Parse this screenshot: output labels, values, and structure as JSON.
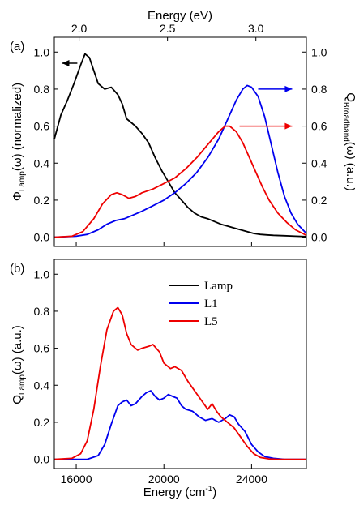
{
  "chart_data": [
    {
      "id": "a",
      "type": "line",
      "panel_label": "(a)",
      "top_axis": {
        "title": "Energy (eV)",
        "ticks": [
          2.0,
          2.5,
          3.0
        ],
        "tick_labels": [
          "2.0",
          "2.5",
          "3.0"
        ]
      },
      "x_range_cm": [
        15000,
        26500
      ],
      "ylim": [
        -0.05,
        1.08
      ],
      "left_axis": {
        "label_main": "Φ",
        "label_sub": "Lamp",
        "label_rest": "(ω) (normalized)",
        "ticks": [
          0.0,
          0.2,
          0.4,
          0.6,
          0.8,
          1.0
        ],
        "tick_labels": [
          "0.0",
          "0.2",
          "0.4",
          "0.6",
          "0.8",
          "1.0"
        ]
      },
      "right_axis": {
        "label_main": "Q",
        "label_sub": "Broadband",
        "label_rest": "(ω) (a.u.)",
        "ticks": [
          0.0,
          0.2,
          0.4,
          0.6,
          0.8,
          1.0
        ],
        "tick_labels": [
          "0.0",
          "0.2",
          "0.4",
          "0.6",
          "0.8",
          "1.0"
        ]
      },
      "series": [
        {
          "color": "#000000",
          "axis": "left",
          "x": [
            15000,
            15300,
            15600,
            15900,
            16200,
            16400,
            16600,
            16800,
            17000,
            17300,
            17600,
            17900,
            18100,
            18300,
            18500,
            18700,
            19000,
            19300,
            19600,
            19900,
            20200,
            20500,
            20800,
            21100,
            21400,
            21700,
            22000,
            22300,
            22600,
            22900,
            23200,
            23500,
            23800,
            24100,
            24400,
            24700,
            25000,
            25500,
            26000,
            26500
          ],
          "y": [
            0.53,
            0.66,
            0.74,
            0.83,
            0.93,
            0.99,
            0.97,
            0.9,
            0.83,
            0.8,
            0.81,
            0.77,
            0.72,
            0.64,
            0.62,
            0.6,
            0.56,
            0.51,
            0.43,
            0.36,
            0.3,
            0.24,
            0.2,
            0.16,
            0.13,
            0.11,
            0.1,
            0.085,
            0.07,
            0.06,
            0.05,
            0.04,
            0.03,
            0.02,
            0.015,
            0.012,
            0.01,
            0.008,
            0.005,
            0.003
          ]
        },
        {
          "color": "#0000ee",
          "axis": "right",
          "x": [
            15000,
            16000,
            16500,
            17000,
            17400,
            17800,
            18200,
            18600,
            19000,
            19500,
            20000,
            20500,
            21000,
            21500,
            22000,
            22500,
            23000,
            23300,
            23600,
            23800,
            24000,
            24300,
            24600,
            24900,
            25200,
            25500,
            25800,
            26100,
            26500
          ],
          "y": [
            0.0,
            0.005,
            0.015,
            0.04,
            0.07,
            0.09,
            0.1,
            0.12,
            0.14,
            0.17,
            0.2,
            0.24,
            0.29,
            0.35,
            0.43,
            0.53,
            0.66,
            0.74,
            0.8,
            0.82,
            0.81,
            0.76,
            0.65,
            0.5,
            0.35,
            0.22,
            0.13,
            0.07,
            0.02
          ]
        },
        {
          "color": "#ee0000",
          "axis": "right",
          "x": [
            15000,
            15800,
            16300,
            16800,
            17200,
            17600,
            17850,
            18100,
            18400,
            18700,
            19000,
            19500,
            20000,
            20500,
            21000,
            21500,
            22000,
            22500,
            22800,
            23000,
            23300,
            23600,
            23900,
            24200,
            24500,
            24800,
            25200,
            25600,
            26000,
            26500
          ],
          "y": [
            0.0,
            0.005,
            0.03,
            0.1,
            0.18,
            0.23,
            0.24,
            0.23,
            0.21,
            0.22,
            0.24,
            0.26,
            0.29,
            0.32,
            0.37,
            0.43,
            0.5,
            0.57,
            0.6,
            0.6,
            0.57,
            0.51,
            0.43,
            0.35,
            0.27,
            0.2,
            0.13,
            0.08,
            0.04,
            0.01
          ]
        }
      ]
    },
    {
      "id": "b",
      "type": "line",
      "panel_label": "(b)",
      "xlabel_main": "Energy (cm",
      "xlabel_sup": "-1",
      "xlabel_end": ")",
      "xlim": [
        15000,
        26500
      ],
      "ylim": [
        -0.05,
        1.08
      ],
      "x_ticks": [
        16000,
        20000,
        24000
      ],
      "x_tick_labels": [
        "16000",
        "20000",
        "24000"
      ],
      "left_axis": {
        "label_main": "Q",
        "label_sub": "Lamp",
        "label_rest": "(ω) (a.u.)",
        "ticks": [
          0.0,
          0.2,
          0.4,
          0.6,
          0.8,
          1.0
        ],
        "tick_labels": [
          "0.0",
          "0.2",
          "0.4",
          "0.6",
          "0.8",
          "1.0"
        ]
      },
      "legend": [
        {
          "label": "Lamp",
          "color": "#000000"
        },
        {
          "label": "L1",
          "color": "#0000ee"
        },
        {
          "label": "L5",
          "color": "#ee0000"
        }
      ],
      "series": [
        {
          "name": "L1",
          "color": "#0000ee",
          "x": [
            15000,
            16500,
            17000,
            17300,
            17600,
            17900,
            18100,
            18300,
            18500,
            18700,
            19000,
            19200,
            19400,
            19600,
            19800,
            20000,
            20200,
            20400,
            20600,
            20800,
            21000,
            21300,
            21600,
            21900,
            22200,
            22500,
            22800,
            23000,
            23200,
            23400,
            23700,
            24000,
            24300,
            24600,
            25000,
            25500,
            26500
          ],
          "y": [
            0.0,
            0.0,
            0.02,
            0.08,
            0.19,
            0.29,
            0.31,
            0.32,
            0.29,
            0.3,
            0.34,
            0.36,
            0.37,
            0.34,
            0.32,
            0.33,
            0.35,
            0.34,
            0.33,
            0.29,
            0.27,
            0.26,
            0.23,
            0.21,
            0.22,
            0.2,
            0.22,
            0.24,
            0.23,
            0.19,
            0.15,
            0.08,
            0.04,
            0.015,
            0.005,
            0.0,
            0.0
          ]
        },
        {
          "name": "L5",
          "color": "#ee0000",
          "x": [
            15000,
            15800,
            16200,
            16500,
            16800,
            17100,
            17400,
            17700,
            17900,
            18100,
            18300,
            18500,
            18800,
            19000,
            19300,
            19500,
            19800,
            20000,
            20300,
            20500,
            20800,
            21100,
            21400,
            21700,
            22000,
            22200,
            22400,
            22600,
            22900,
            23200,
            23500,
            23800,
            24100,
            24400,
            24800,
            25200,
            26500
          ],
          "y": [
            0.0,
            0.005,
            0.03,
            0.1,
            0.27,
            0.5,
            0.7,
            0.8,
            0.82,
            0.78,
            0.68,
            0.62,
            0.59,
            0.6,
            0.61,
            0.62,
            0.58,
            0.52,
            0.49,
            0.5,
            0.48,
            0.42,
            0.37,
            0.32,
            0.27,
            0.3,
            0.26,
            0.23,
            0.2,
            0.17,
            0.12,
            0.07,
            0.03,
            0.01,
            0.002,
            0.0,
            0.0
          ]
        }
      ]
    }
  ]
}
